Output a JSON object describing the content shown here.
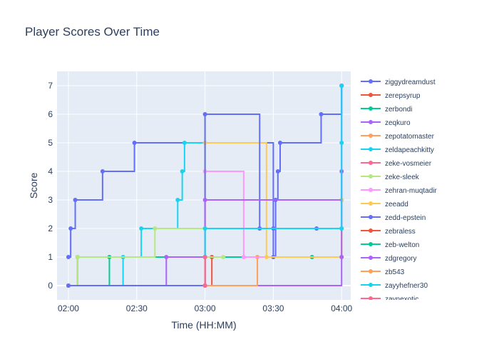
{
  "chart_data": {
    "type": "line",
    "line_shape": "step",
    "title": "Player Scores Over Time",
    "xlabel": "Time (HH:MM)",
    "ylabel": "Score",
    "x_ticks": [
      "02:00",
      "02:30",
      "03:00",
      "03:30",
      "04:00"
    ],
    "x_range": [
      "01:55",
      "04:04"
    ],
    "y_ticks": [
      0,
      1,
      2,
      3,
      4,
      5,
      6,
      7
    ],
    "ylim": [
      -0.5,
      7.5
    ],
    "grid": true,
    "legend_position": "right",
    "series": [
      {
        "name": "ziggydreamdust",
        "color": "#636efa",
        "points": [
          [
            "02:00",
            1
          ],
          [
            "02:01",
            2
          ],
          [
            "02:03",
            3
          ],
          [
            "02:15",
            4
          ],
          [
            "02:29",
            5
          ],
          [
            "03:30",
            1
          ],
          [
            "03:31",
            3
          ],
          [
            "03:32",
            4
          ],
          [
            "03:33",
            5
          ],
          [
            "03:51",
            6
          ],
          [
            "04:00",
            7
          ]
        ]
      },
      {
        "name": "zerepsyrup",
        "color": "#EF553B",
        "points": [
          [
            "02:00",
            0
          ],
          [
            "02:04",
            1
          ],
          [
            "03:00",
            0
          ],
          [
            "03:03",
            1
          ]
        ]
      },
      {
        "name": "zerbondi",
        "color": "#00cc96",
        "points": [
          [
            "02:00",
            0
          ],
          [
            "02:18",
            1
          ],
          [
            "03:00",
            1
          ],
          [
            "03:47",
            1
          ],
          [
            "04:00",
            2
          ]
        ]
      },
      {
        "name": "zeqkuro",
        "color": "#ab63fa",
        "points": [
          [
            "02:00",
            0
          ],
          [
            "02:43",
            1
          ],
          [
            "03:00",
            0
          ],
          [
            "04:00",
            4
          ]
        ]
      },
      {
        "name": "zepotatomaster",
        "color": "#FFA15A",
        "points": [
          [
            "02:00",
            0
          ],
          [
            "03:00",
            0
          ],
          [
            "03:23",
            1
          ],
          [
            "04:00",
            3
          ]
        ]
      },
      {
        "name": "zeldapeachkitty",
        "color": "#19d3f3",
        "points": [
          [
            "02:00",
            0
          ],
          [
            "02:24",
            1
          ],
          [
            "02:32",
            2
          ],
          [
            "02:48",
            3
          ],
          [
            "02:50",
            4
          ],
          [
            "02:51",
            5
          ],
          [
            "03:00",
            1
          ]
        ]
      },
      {
        "name": "zeke-vosmeier",
        "color": "#FF6692",
        "points": [
          [
            "03:00",
            0
          ],
          [
            "03:00",
            1
          ]
        ]
      },
      {
        "name": "zeke-sleek",
        "color": "#B6E880",
        "points": [
          [
            "02:00",
            0
          ],
          [
            "02:04",
            1
          ],
          [
            "02:38",
            2
          ],
          [
            "03:00",
            2
          ],
          [
            "03:00",
            6
          ],
          [
            "03:00",
            1
          ],
          [
            "03:08",
            1
          ]
        ]
      },
      {
        "name": "zehran-muqtadir",
        "color": "#FF97FF",
        "points": [
          [
            "03:00",
            0
          ],
          [
            "03:00",
            4
          ],
          [
            "03:17",
            1
          ],
          [
            "04:00",
            1
          ]
        ]
      },
      {
        "name": "zeeadd",
        "color": "#FECB52",
        "points": [
          [
            "02:00",
            0
          ],
          [
            "03:00",
            0
          ],
          [
            "03:00",
            5
          ],
          [
            "03:27",
            1
          ],
          [
            "04:00",
            3
          ]
        ]
      },
      {
        "name": "zedd-epstein",
        "color": "#636efa",
        "points": [
          [
            "02:00",
            0
          ],
          [
            "03:00",
            0
          ],
          [
            "03:00",
            6
          ],
          [
            "03:24",
            2
          ],
          [
            "03:30",
            2
          ],
          [
            "03:49",
            2
          ],
          [
            "04:00",
            7
          ]
        ]
      },
      {
        "name": "zebraless",
        "color": "#EF553B",
        "points": [
          [
            "03:00",
            0
          ],
          [
            "03:00",
            1
          ]
        ]
      },
      {
        "name": "zeb-welton",
        "color": "#00cc96",
        "points": [
          [
            "03:00",
            0
          ],
          [
            "03:00",
            1
          ]
        ]
      },
      {
        "name": "zdgregory",
        "color": "#ab63fa",
        "points": [
          [
            "03:00",
            0
          ],
          [
            "03:00",
            3
          ],
          [
            "04:00",
            1
          ]
        ]
      },
      {
        "name": "zb543",
        "color": "#FFA15A",
        "points": [
          [
            "03:00",
            0
          ],
          [
            "03:00",
            1
          ]
        ]
      },
      {
        "name": "zayyhefner30",
        "color": "#19d3f3",
        "points": [
          [
            "03:00",
            1
          ],
          [
            "03:00",
            2
          ],
          [
            "04:00",
            2
          ],
          [
            "04:00",
            5
          ],
          [
            "04:00",
            7
          ]
        ]
      },
      {
        "name": "zaynexotic",
        "color": "#FF6692",
        "points": [
          [
            "03:00",
            0
          ],
          [
            "03:00",
            1
          ]
        ]
      }
    ]
  }
}
